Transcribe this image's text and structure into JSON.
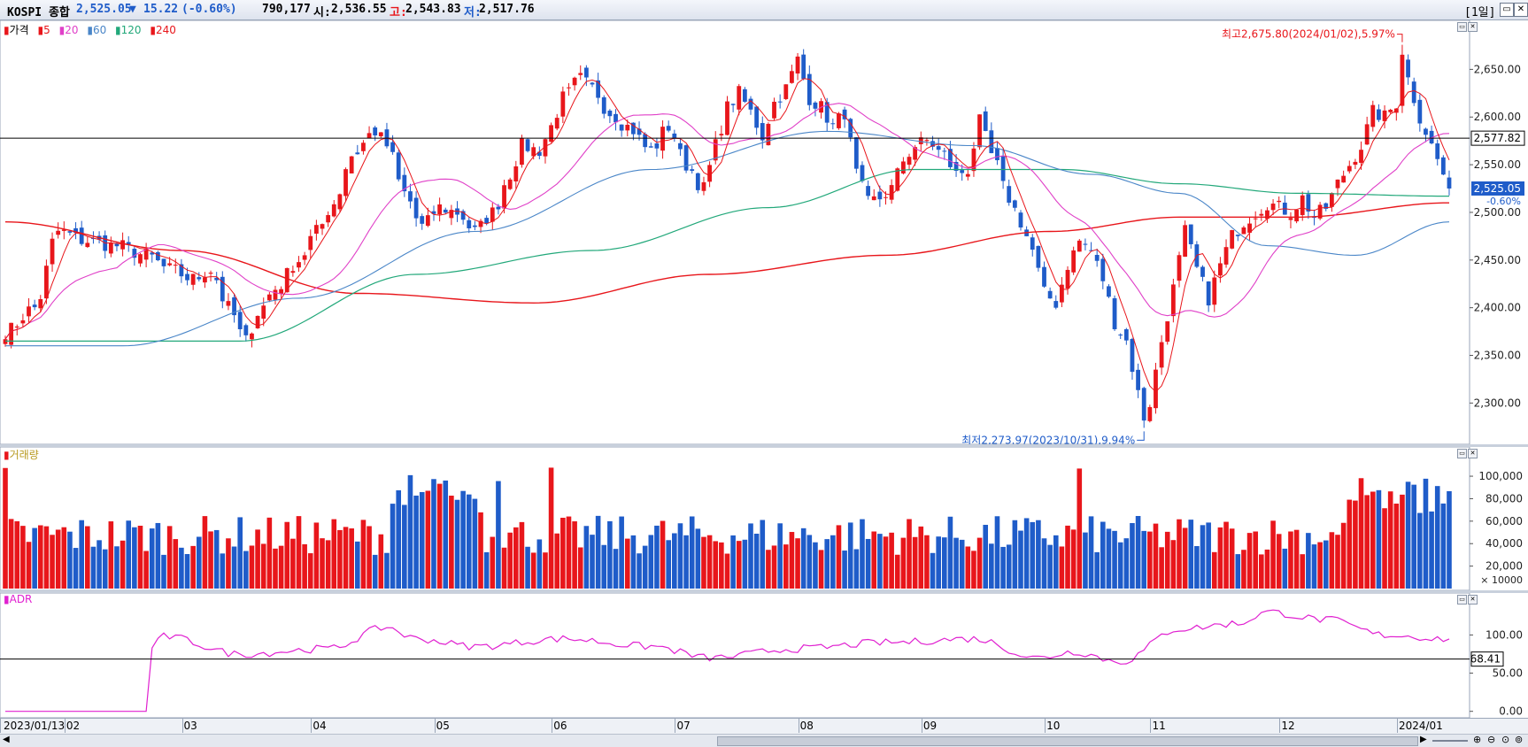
{
  "title_bar": {
    "name": "KOSPI 종합",
    "price": "2,525.05",
    "change_arrow": "▼",
    "change": "15.22",
    "change_pct": "(-0.60%)",
    "volume": "790,177",
    "open_label": "시:",
    "open": "2,536.55",
    "high_label": "고:",
    "high": "2,543.83",
    "low_label": "저:",
    "low": "2,517.76",
    "period": "[1일]",
    "window_buttons": [
      "minimize-icon",
      "close-icon"
    ]
  },
  "colors": {
    "up": "#e8161b",
    "down": "#1f5cc9",
    "ma5": "#e8161b",
    "ma20": "#e040c8",
    "ma60": "#4a86c8",
    "ma120": "#22a87a",
    "ma240": "#e8161b",
    "adr": "#e020d0",
    "ref_line": "#000000"
  },
  "price_pane": {
    "legend": [
      "가격",
      "5",
      "20",
      "60",
      "120",
      "240"
    ],
    "y_ticks": [
      "2,650.00",
      "2,600.00",
      "2,550.00",
      "2,500.00",
      "2,450.00",
      "2,400.00",
      "2,350.00",
      "2,300.00"
    ],
    "y_tick_values": [
      2650,
      2600,
      2550,
      2500,
      2450,
      2400,
      2350,
      2300
    ],
    "ylim": [
      2259.5,
      2697.7
    ],
    "ref_line_value": 2577.82,
    "ref_line_label": "2,577.82",
    "last_price_label": "2,525.05",
    "last_pct_label": "-0.60%",
    "high_annotation": "최고2,675.80(2024/01/02),5.97%",
    "low_annotation": "최저2,273.97(2023/10/31),9.94%",
    "high_index": 238,
    "low_index": 194
  },
  "volume_pane": {
    "legend": "거래량",
    "y_ticks": [
      "100,000",
      "80,000",
      "60,000",
      "40,000",
      "20,000"
    ],
    "y_tick_values": [
      100000,
      80000,
      60000,
      40000,
      20000
    ],
    "unit_label": "× 10000",
    "ylim": [
      0,
      115000
    ]
  },
  "adr_pane": {
    "legend": "ADR",
    "y_ticks": [
      "100.00",
      "50.00",
      "0.00"
    ],
    "y_tick_values": [
      100,
      50,
      0
    ],
    "ylim": [
      -5,
      148
    ],
    "ref_value": 68.41,
    "ref_label": "68.41"
  },
  "x_axis": {
    "labels": [
      "2023/01/13",
      "02",
      "03",
      "04",
      "05",
      "06",
      "07",
      "08",
      "09",
      "10",
      "11",
      "12",
      "2024/01"
    ],
    "label_index": [
      0,
      11,
      31,
      53,
      74,
      94,
      115,
      136,
      157,
      178,
      196,
      218,
      238
    ]
  },
  "chart_data": {
    "type": "candlestick",
    "series_name": "KOSPI 종합",
    "start_date": "2023/01/13",
    "anchors": [
      [
        0,
        2375
      ],
      [
        5,
        2400
      ],
      [
        9,
        2480
      ],
      [
        14,
        2470
      ],
      [
        19,
        2465
      ],
      [
        24,
        2455
      ],
      [
        28,
        2440
      ],
      [
        32,
        2430
      ],
      [
        35,
        2440
      ],
      [
        38,
        2400
      ],
      [
        41,
        2365
      ],
      [
        43,
        2395
      ],
      [
        46,
        2420
      ],
      [
        50,
        2450
      ],
      [
        53,
        2480
      ],
      [
        56,
        2510
      ],
      [
        59,
        2560
      ],
      [
        63,
        2585
      ],
      [
        65,
        2570
      ],
      [
        68,
        2520
      ],
      [
        71,
        2485
      ],
      [
        74,
        2505
      ],
      [
        77,
        2500
      ],
      [
        80,
        2480
      ],
      [
        83,
        2500
      ],
      [
        86,
        2540
      ],
      [
        88,
        2570
      ],
      [
        91,
        2565
      ],
      [
        93,
        2590
      ],
      [
        95,
        2620
      ],
      [
        98,
        2640
      ],
      [
        100,
        2630
      ],
      [
        103,
        2605
      ],
      [
        106,
        2590
      ],
      [
        110,
        2565
      ],
      [
        113,
        2590
      ],
      [
        116,
        2550
      ],
      [
        119,
        2525
      ],
      [
        121,
        2570
      ],
      [
        123,
        2610
      ],
      [
        125,
        2625
      ],
      [
        127,
        2605
      ],
      [
        129,
        2580
      ],
      [
        131,
        2615
      ],
      [
        133,
        2630
      ],
      [
        135,
        2660
      ],
      [
        137,
        2620
      ],
      [
        139,
        2610
      ],
      [
        141,
        2590
      ],
      [
        143,
        2605
      ],
      [
        145,
        2540
      ],
      [
        147,
        2510
      ],
      [
        149,
        2515
      ],
      [
        151,
        2525
      ],
      [
        153,
        2555
      ],
      [
        155,
        2570
      ],
      [
        157,
        2575
      ],
      [
        160,
        2560
      ],
      [
        162,
        2540
      ],
      [
        164,
        2545
      ],
      [
        166,
        2595
      ],
      [
        168,
        2560
      ],
      [
        171,
        2515
      ],
      [
        173,
        2490
      ],
      [
        175,
        2460
      ],
      [
        177,
        2415
      ],
      [
        179,
        2405
      ],
      [
        181,
        2445
      ],
      [
        183,
        2470
      ],
      [
        185,
        2460
      ],
      [
        187,
        2430
      ],
      [
        189,
        2385
      ],
      [
        191,
        2365
      ],
      [
        193,
        2310
      ],
      [
        194,
        2285
      ],
      [
        195,
        2300
      ],
      [
        197,
        2365
      ],
      [
        199,
        2420
      ],
      [
        201,
        2480
      ],
      [
        203,
        2440
      ],
      [
        205,
        2410
      ],
      [
        207,
        2445
      ],
      [
        209,
        2475
      ],
      [
        211,
        2490
      ],
      [
        213,
        2500
      ],
      [
        215,
        2510
      ],
      [
        217,
        2505
      ],
      [
        219,
        2500
      ],
      [
        221,
        2515
      ],
      [
        223,
        2495
      ],
      [
        225,
        2505
      ],
      [
        227,
        2530
      ],
      [
        229,
        2550
      ],
      [
        231,
        2570
      ],
      [
        233,
        2605
      ],
      [
        235,
        2600
      ],
      [
        237,
        2615
      ],
      [
        238,
        2670
      ],
      [
        239,
        2640
      ],
      [
        241,
        2600
      ],
      [
        243,
        2570
      ],
      [
        245,
        2540
      ],
      [
        246,
        2525
      ]
    ],
    "ma_value_ranges": {
      "ma60": [
        2330,
        2600
      ],
      "ma120": [
        2350,
        2560
      ],
      "ma240": [
        2410,
        2510
      ]
    },
    "ma240_anchors": [
      [
        0,
        2490
      ],
      [
        30,
        2460
      ],
      [
        60,
        2415
      ],
      [
        90,
        2405
      ],
      [
        120,
        2435
      ],
      [
        150,
        2455
      ],
      [
        178,
        2480
      ],
      [
        200,
        2495
      ],
      [
        220,
        2495
      ],
      [
        246,
        2510
      ]
    ],
    "ma120_anchors": [
      [
        0,
        2365
      ],
      [
        40,
        2365
      ],
      [
        70,
        2435
      ],
      [
        100,
        2460
      ],
      [
        130,
        2505
      ],
      [
        155,
        2545
      ],
      [
        180,
        2545
      ],
      [
        200,
        2530
      ],
      [
        220,
        2520
      ],
      [
        246,
        2517
      ]
    ],
    "ma60_anchors": [
      [
        0,
        2360
      ],
      [
        20,
        2360
      ],
      [
        50,
        2410
      ],
      [
        80,
        2480
      ],
      [
        110,
        2545
      ],
      [
        140,
        2585
      ],
      [
        165,
        2570
      ],
      [
        185,
        2540
      ],
      [
        200,
        2520
      ],
      [
        215,
        2465
      ],
      [
        230,
        2455
      ],
      [
        246,
        2490
      ]
    ],
    "volume_range": [
      18000,
      110000
    ],
    "adr_anchors": [
      [
        0,
        0
      ],
      [
        24,
        0
      ],
      [
        25,
        85
      ],
      [
        27,
        98
      ],
      [
        40,
        75
      ],
      [
        55,
        82
      ],
      [
        65,
        110
      ],
      [
        70,
        95
      ],
      [
        80,
        85
      ],
      [
        95,
        95
      ],
      [
        110,
        85
      ],
      [
        120,
        70
      ],
      [
        135,
        82
      ],
      [
        150,
        90
      ],
      [
        165,
        95
      ],
      [
        176,
        70
      ],
      [
        182,
        78
      ],
      [
        190,
        65
      ],
      [
        200,
        108
      ],
      [
        210,
        115
      ],
      [
        215,
        130
      ],
      [
        225,
        120
      ],
      [
        235,
        100
      ],
      [
        246,
        95
      ]
    ]
  }
}
